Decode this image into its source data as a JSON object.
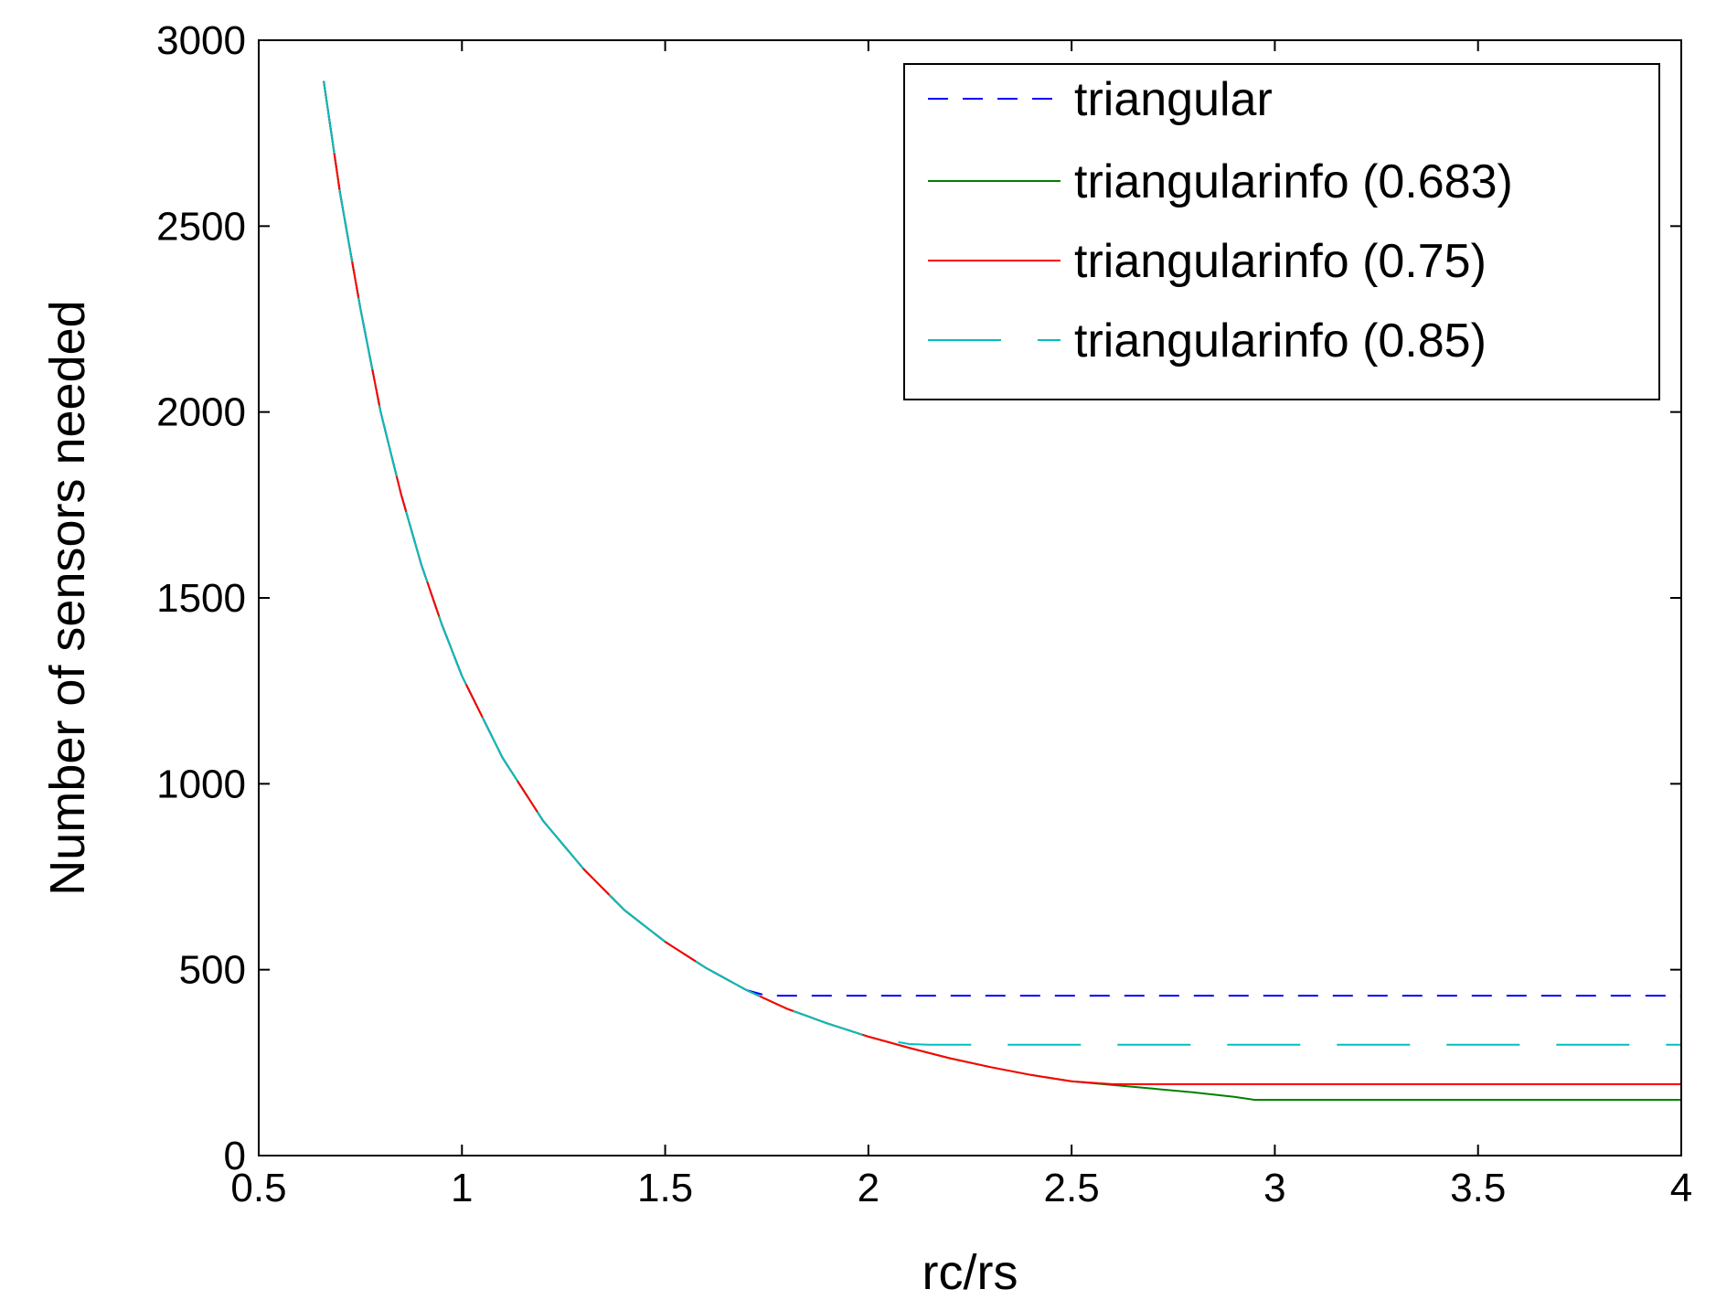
{
  "chart_data": {
    "type": "line",
    "title": "",
    "xlabel": "rc/rs",
    "ylabel": "Number of sensors needed",
    "xlim": [
      0.5,
      4
    ],
    "ylim": [
      0,
      3000
    ],
    "x_ticks": [
      0.5,
      1,
      1.5,
      2,
      2.5,
      3,
      3.5,
      4
    ],
    "x_tick_labels": [
      "0.5",
      "1",
      "1.5",
      "2",
      "2.5",
      "3",
      "3.5",
      "4"
    ],
    "y_ticks": [
      0,
      500,
      1000,
      1500,
      2000,
      2500,
      3000
    ],
    "y_tick_labels": [
      "0",
      "500",
      "1000",
      "1500",
      "2000",
      "2500",
      "3000"
    ],
    "grid": false,
    "legend_position": "top-right",
    "series": [
      {
        "name": "triangular",
        "color": "#0000ff",
        "style": "dashed",
        "x": [
          0.66,
          0.7,
          0.75,
          0.8,
          0.85,
          0.9,
          0.95,
          1.0,
          1.1,
          1.2,
          1.3,
          1.4,
          1.5,
          1.6,
          1.7,
          1.75,
          2.0,
          2.5,
          3.0,
          3.5,
          4.0
        ],
        "y": [
          2890,
          2590,
          2280,
          2000,
          1780,
          1590,
          1430,
          1290,
          1070,
          900,
          770,
          660,
          575,
          505,
          445,
          430,
          430,
          430,
          430,
          430,
          430
        ]
      },
      {
        "name": "triangularinfo (0.683)",
        "color": "#008000",
        "style": "solid",
        "x": [
          0.66,
          0.7,
          0.75,
          0.8,
          0.85,
          0.9,
          0.95,
          1.0,
          1.1,
          1.2,
          1.3,
          1.4,
          1.5,
          1.6,
          1.7,
          1.8,
          1.9,
          2.0,
          2.1,
          2.2,
          2.3,
          2.4,
          2.5,
          2.6,
          2.7,
          2.8,
          2.9,
          2.95,
          3.0,
          3.5,
          4.0
        ],
        "y": [
          2890,
          2590,
          2280,
          2000,
          1780,
          1590,
          1430,
          1290,
          1070,
          900,
          770,
          660,
          575,
          505,
          445,
          395,
          355,
          320,
          290,
          262,
          238,
          217,
          200,
          190,
          180,
          170,
          158,
          150,
          150,
          150,
          150
        ]
      },
      {
        "name": "triangularinfo (0.75)",
        "color": "#ff0000",
        "style": "solid",
        "x": [
          0.66,
          0.7,
          0.75,
          0.8,
          0.85,
          0.9,
          0.95,
          1.0,
          1.1,
          1.2,
          1.3,
          1.4,
          1.5,
          1.6,
          1.7,
          1.8,
          1.9,
          2.0,
          2.1,
          2.2,
          2.3,
          2.4,
          2.5,
          2.6,
          3.0,
          3.5,
          4.0
        ],
        "y": [
          2890,
          2590,
          2280,
          2000,
          1780,
          1590,
          1430,
          1290,
          1070,
          900,
          770,
          660,
          575,
          505,
          445,
          395,
          355,
          320,
          290,
          262,
          238,
          217,
          200,
          192,
          192,
          192,
          192
        ]
      },
      {
        "name": "triangularinfo (0.85)",
        "color": "#00bfbf",
        "style": "long-dash",
        "x": [
          0.66,
          0.7,
          0.75,
          0.8,
          0.85,
          0.9,
          0.95,
          1.0,
          1.1,
          1.2,
          1.3,
          1.4,
          1.5,
          1.6,
          1.7,
          1.8,
          1.9,
          2.0,
          2.1,
          2.15,
          2.5,
          3.0,
          3.5,
          4.0
        ],
        "y": [
          2890,
          2590,
          2280,
          2000,
          1780,
          1590,
          1430,
          1290,
          1070,
          900,
          770,
          660,
          575,
          505,
          445,
          395,
          355,
          320,
          300,
          298,
          298,
          298,
          298,
          298
        ]
      }
    ]
  }
}
